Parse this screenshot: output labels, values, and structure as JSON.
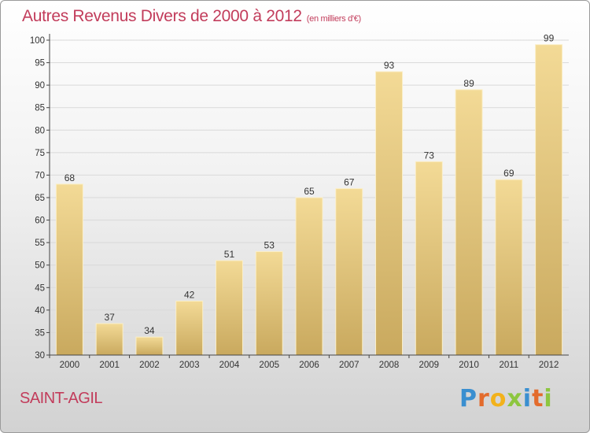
{
  "header": {
    "title": "Autres Revenus Divers de 2000 à 2012",
    "unit": "(en milliers d'€)"
  },
  "footer": {
    "place": "SAINT-AGIL",
    "logo_letters": [
      {
        "ch": "P",
        "color": "#3a8fd0"
      },
      {
        "ch": "r",
        "color": "#e36b2c"
      },
      {
        "ch": "o",
        "color": "#f2b21b"
      },
      {
        "ch": "x",
        "color": "#8dc63f"
      },
      {
        "ch": "i",
        "color": "#3a8fd0"
      },
      {
        "ch": "t",
        "color": "#e36b2c"
      },
      {
        "ch": "i",
        "color": "#8dc63f"
      }
    ]
  },
  "chart_data": {
    "type": "bar",
    "categories": [
      "2000",
      "2001",
      "2002",
      "2003",
      "2004",
      "2005",
      "2006",
      "2007",
      "2008",
      "2009",
      "2010",
      "2011",
      "2012"
    ],
    "values": [
      68,
      37,
      34,
      42,
      51,
      53,
      65,
      67,
      93,
      73,
      89,
      69,
      99
    ],
    "ylim": [
      30,
      100
    ],
    "yticks": [
      30,
      35,
      40,
      45,
      50,
      55,
      60,
      65,
      70,
      75,
      80,
      85,
      90,
      95,
      100
    ],
    "grid": true,
    "colors": {
      "bar_top": "#f3da96",
      "bar_bottom": "#c9a95e",
      "bar_edge": "#fbefc8",
      "grid": "#d9d9d9",
      "axis": "#444444",
      "text": "#333333",
      "title": "#c23c5b"
    }
  }
}
